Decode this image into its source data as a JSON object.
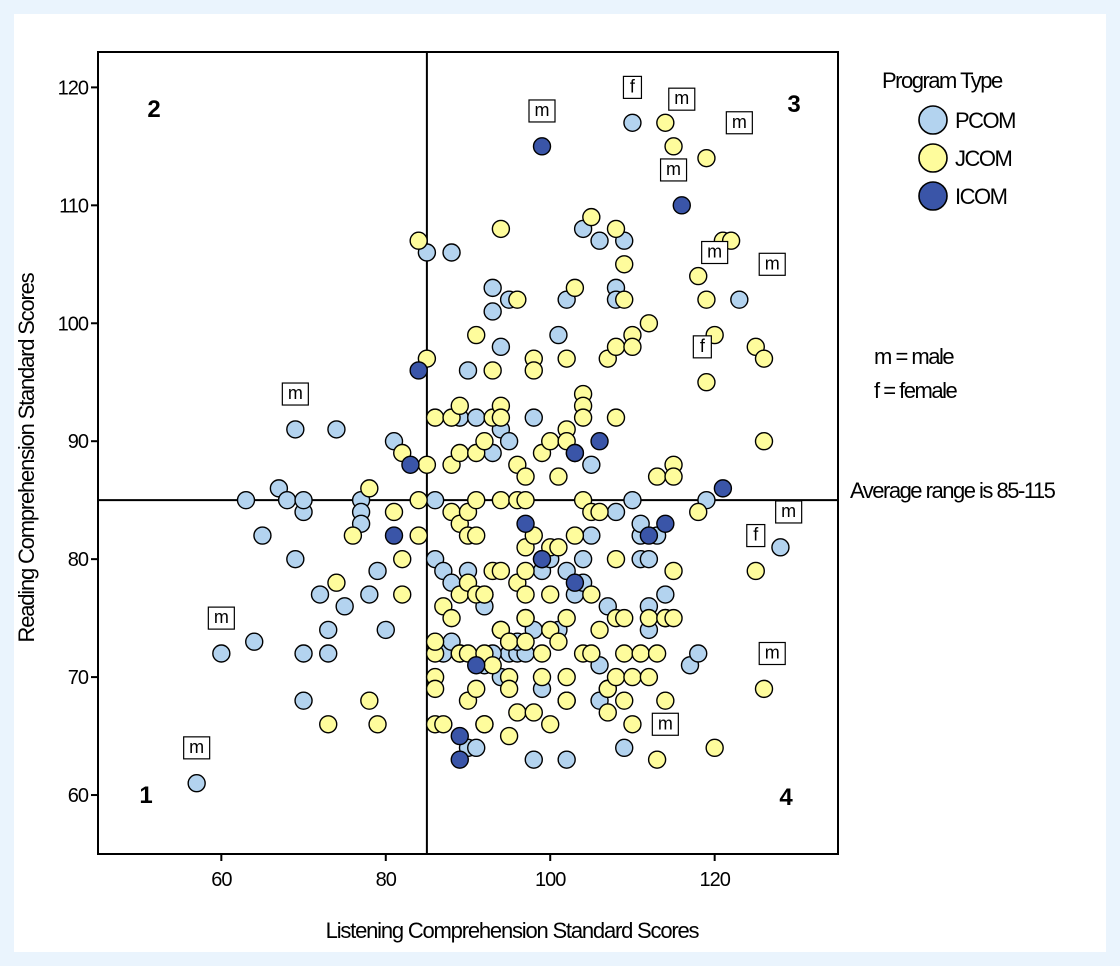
{
  "chart_data": {
    "type": "scatter",
    "xlabel": "Listening Comprehension Standard Scores",
    "ylabel": "Reading Comprehension Standard Scores",
    "xlim": [
      45,
      135
    ],
    "ylim": [
      55,
      123
    ],
    "x_ticks": [
      60,
      80,
      100,
      120
    ],
    "y_ticks": [
      60,
      70,
      80,
      90,
      100,
      110,
      120
    ],
    "reference_lines": {
      "x": 85,
      "y": 85
    },
    "quadrant_labels": [
      "1",
      "2",
      "3",
      "4"
    ],
    "legend": {
      "title": "Program Type",
      "entries": [
        {
          "name": "PCOM",
          "color": "#b3d3ef"
        },
        {
          "name": "JCOM",
          "color": "#fefc9c"
        },
        {
          "name": "ICOM",
          "color": "#3a55a8"
        }
      ]
    },
    "notes": {
      "male": "m = male",
      "female": "f  = female",
      "average": "Average range is 85-115"
    },
    "annotations": [
      {
        "text": "m",
        "x": 57,
        "y": 64
      },
      {
        "text": "m",
        "x": 60,
        "y": 75
      },
      {
        "text": "m",
        "x": 69,
        "y": 94
      },
      {
        "text": "m",
        "x": 99,
        "y": 118
      },
      {
        "text": "f",
        "x": 110,
        "y": 120
      },
      {
        "text": "m",
        "x": 116,
        "y": 119
      },
      {
        "text": "m",
        "x": 123,
        "y": 117
      },
      {
        "text": "m",
        "x": 115,
        "y": 113
      },
      {
        "text": "m",
        "x": 120,
        "y": 106
      },
      {
        "text": "m",
        "x": 127,
        "y": 105
      },
      {
        "text": "f",
        "x": 118.5,
        "y": 98
      },
      {
        "text": "m",
        "x": 129,
        "y": 84
      },
      {
        "text": "f",
        "x": 125,
        "y": 82
      },
      {
        "text": "m",
        "x": 127,
        "y": 72
      },
      {
        "text": "m",
        "x": 114,
        "y": 66
      }
    ],
    "series": [
      {
        "name": "PCOM",
        "points": [
          [
            57,
            61
          ],
          [
            60,
            72
          ],
          [
            63,
            85
          ],
          [
            64,
            73
          ],
          [
            65,
            82
          ],
          [
            67,
            86
          ],
          [
            68,
            85
          ],
          [
            69,
            91
          ],
          [
            69,
            80
          ],
          [
            70,
            84
          ],
          [
            70,
            85
          ],
          [
            70,
            72
          ],
          [
            70,
            68
          ],
          [
            72,
            77
          ],
          [
            73,
            74
          ],
          [
            73,
            72
          ],
          [
            74,
            91
          ],
          [
            75,
            76
          ],
          [
            77,
            85
          ],
          [
            77,
            84
          ],
          [
            77,
            83
          ],
          [
            78,
            77
          ],
          [
            79,
            79
          ],
          [
            80,
            74
          ],
          [
            81,
            90
          ],
          [
            85,
            106
          ],
          [
            88,
            106
          ],
          [
            86,
            85
          ],
          [
            86,
            80
          ],
          [
            87,
            79
          ],
          [
            88,
            78
          ],
          [
            87,
            72
          ],
          [
            88,
            73
          ],
          [
            89,
            72
          ],
          [
            90,
            64
          ],
          [
            91,
            64
          ],
          [
            92,
            66
          ],
          [
            90,
            79
          ],
          [
            89,
            92
          ],
          [
            90,
            96
          ],
          [
            91,
            92
          ],
          [
            92,
            76
          ],
          [
            92,
            77
          ],
          [
            93,
            103
          ],
          [
            93,
            101
          ],
          [
            93,
            89
          ],
          [
            94,
            91
          ],
          [
            94,
            98
          ],
          [
            95,
            102
          ],
          [
            95,
            90
          ],
          [
            94,
            70
          ],
          [
            95,
            73
          ],
          [
            95,
            72
          ],
          [
            96,
            72
          ],
          [
            97,
            72
          ],
          [
            98,
            63
          ],
          [
            99,
            69
          ],
          [
            99,
            79
          ],
          [
            99,
            80
          ],
          [
            100,
            80
          ],
          [
            98,
            92
          ],
          [
            101,
            99
          ],
          [
            102,
            102
          ],
          [
            102,
            79
          ],
          [
            102,
            68
          ],
          [
            102,
            63
          ],
          [
            103,
            77
          ],
          [
            103,
            89
          ],
          [
            104,
            78
          ],
          [
            104,
            108
          ],
          [
            105,
            88
          ],
          [
            106,
            107
          ],
          [
            106,
            71
          ],
          [
            106,
            68
          ],
          [
            107,
            69
          ],
          [
            107,
            76
          ],
          [
            108,
            103
          ],
          [
            108,
            102
          ],
          [
            109,
            107
          ],
          [
            109,
            64
          ],
          [
            110,
            85
          ],
          [
            111,
            80
          ],
          [
            111,
            82
          ],
          [
            111,
            83
          ],
          [
            112,
            76
          ],
          [
            112,
            74
          ],
          [
            112,
            80
          ],
          [
            114,
            77
          ],
          [
            114,
            75
          ],
          [
            117,
            71
          ],
          [
            118,
            72
          ],
          [
            119,
            85
          ],
          [
            110,
            117
          ],
          [
            123,
            102
          ],
          [
            128,
            81
          ],
          [
            92,
            71
          ],
          [
            93,
            72
          ],
          [
            94,
            74
          ],
          [
            96,
            73
          ],
          [
            97,
            75
          ],
          [
            98,
            74
          ],
          [
            101,
            74
          ],
          [
            104,
            80
          ],
          [
            105,
            82
          ],
          [
            108,
            84
          ],
          [
            113,
            82
          ]
        ]
      },
      {
        "name": "JCOM",
        "points": [
          [
            73,
            66
          ],
          [
            74,
            78
          ],
          [
            76,
            82
          ],
          [
            78,
            86
          ],
          [
            78,
            68
          ],
          [
            79,
            66
          ],
          [
            81,
            84
          ],
          [
            82,
            89
          ],
          [
            82,
            80
          ],
          [
            82,
            77
          ],
          [
            84,
            85
          ],
          [
            84,
            82
          ],
          [
            84,
            107
          ],
          [
            85,
            97
          ],
          [
            85,
            88
          ],
          [
            86,
            92
          ],
          [
            86,
            72
          ],
          [
            86,
            73
          ],
          [
            86,
            70
          ],
          [
            86,
            69
          ],
          [
            86,
            66
          ],
          [
            87,
            66
          ],
          [
            87,
            76
          ],
          [
            88,
            75
          ],
          [
            88,
            84
          ],
          [
            88,
            92
          ],
          [
            88,
            88
          ],
          [
            89,
            93
          ],
          [
            89,
            89
          ],
          [
            89,
            83
          ],
          [
            89,
            77
          ],
          [
            89,
            72
          ],
          [
            90,
            84
          ],
          [
            90,
            82
          ],
          [
            90,
            78
          ],
          [
            90,
            72
          ],
          [
            90,
            68
          ],
          [
            91,
            99
          ],
          [
            91,
            89
          ],
          [
            91,
            85
          ],
          [
            91,
            82
          ],
          [
            91,
            77
          ],
          [
            91,
            69
          ],
          [
            92,
            90
          ],
          [
            92,
            77
          ],
          [
            92,
            72
          ],
          [
            92,
            66
          ],
          [
            93,
            96
          ],
          [
            93,
            92
          ],
          [
            93,
            79
          ],
          [
            93,
            71
          ],
          [
            94,
            108
          ],
          [
            94,
            93
          ],
          [
            94,
            92
          ],
          [
            94,
            85
          ],
          [
            94,
            79
          ],
          [
            94,
            74
          ],
          [
            95,
            73
          ],
          [
            95,
            70
          ],
          [
            95,
            69
          ],
          [
            95,
            65
          ],
          [
            96,
            102
          ],
          [
            96,
            88
          ],
          [
            96,
            85
          ],
          [
            96,
            78
          ],
          [
            96,
            67
          ],
          [
            97,
            87
          ],
          [
            97,
            85
          ],
          [
            97,
            81
          ],
          [
            97,
            79
          ],
          [
            97,
            77
          ],
          [
            97,
            75
          ],
          [
            97,
            73
          ],
          [
            98,
            97
          ],
          [
            98,
            96
          ],
          [
            98,
            82
          ],
          [
            98,
            67
          ],
          [
            99,
            89
          ],
          [
            99,
            70
          ],
          [
            99,
            72
          ],
          [
            100,
            90
          ],
          [
            100,
            81
          ],
          [
            100,
            77
          ],
          [
            100,
            74
          ],
          [
            100,
            66
          ],
          [
            101,
            81
          ],
          [
            101,
            87
          ],
          [
            101,
            73
          ],
          [
            102,
            91
          ],
          [
            102,
            90
          ],
          [
            102,
            97
          ],
          [
            102,
            75
          ],
          [
            102,
            70
          ],
          [
            102,
            68
          ],
          [
            103,
            103
          ],
          [
            103,
            82
          ],
          [
            104,
            94
          ],
          [
            104,
            93
          ],
          [
            104,
            92
          ],
          [
            104,
            85
          ],
          [
            104,
            72
          ],
          [
            105,
            109
          ],
          [
            105,
            84
          ],
          [
            105,
            77
          ],
          [
            105,
            72
          ],
          [
            106,
            84
          ],
          [
            106,
            74
          ],
          [
            107,
            97
          ],
          [
            107,
            69
          ],
          [
            107,
            67
          ],
          [
            108,
            108
          ],
          [
            108,
            98
          ],
          [
            108,
            92
          ],
          [
            108,
            80
          ],
          [
            108,
            75
          ],
          [
            108,
            70
          ],
          [
            109,
            105
          ],
          [
            109,
            102
          ],
          [
            109,
            75
          ],
          [
            109,
            72
          ],
          [
            109,
            68
          ],
          [
            110,
            99
          ],
          [
            110,
            98
          ],
          [
            110,
            70
          ],
          [
            110,
            66
          ],
          [
            111,
            72
          ],
          [
            112,
            100
          ],
          [
            112,
            75
          ],
          [
            112,
            70
          ],
          [
            113,
            87
          ],
          [
            113,
            72
          ],
          [
            113,
            63
          ],
          [
            114,
            117
          ],
          [
            114,
            75
          ],
          [
            114,
            68
          ],
          [
            115,
            115
          ],
          [
            115,
            113
          ],
          [
            115,
            88
          ],
          [
            115,
            87
          ],
          [
            115,
            79
          ],
          [
            115,
            75
          ],
          [
            118,
            104
          ],
          [
            118,
            84
          ],
          [
            119,
            114
          ],
          [
            119,
            102
          ],
          [
            119,
            95
          ],
          [
            120,
            99
          ],
          [
            120,
            64
          ],
          [
            121,
            107
          ],
          [
            122,
            107
          ],
          [
            125,
            98
          ],
          [
            125,
            79
          ],
          [
            126,
            97
          ],
          [
            126,
            90
          ],
          [
            126,
            69
          ]
        ]
      },
      {
        "name": "ICOM",
        "points": [
          [
            99,
            115
          ],
          [
            116,
            110
          ],
          [
            84,
            96
          ],
          [
            83,
            88
          ],
          [
            81,
            82
          ],
          [
            89,
            65
          ],
          [
            89,
            63
          ],
          [
            91,
            71
          ],
          [
            97,
            83
          ],
          [
            99,
            80
          ],
          [
            103,
            78
          ],
          [
            103,
            89
          ],
          [
            106,
            90
          ],
          [
            112,
            82
          ],
          [
            114,
            83
          ],
          [
            121,
            86
          ]
        ]
      }
    ]
  }
}
